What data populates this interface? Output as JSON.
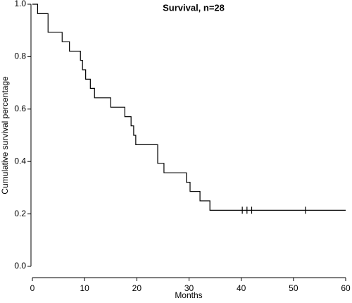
{
  "chart_data": {
    "type": "step",
    "title": "Survival, n=28",
    "x_label": "Months",
    "y_label": "Cumulative survival percentage",
    "x": [
      0,
      1,
      3,
      5.7,
      7.1,
      9.2,
      9.6,
      10.2,
      11.1,
      11.9,
      15,
      17.7,
      18.9,
      19.4,
      19.8,
      24,
      25.2,
      29.5,
      30.2,
      32.1,
      34,
      60
    ],
    "values": [
      1,
      0.964,
      0.893,
      0.857,
      0.821,
      0.786,
      0.75,
      0.714,
      0.679,
      0.643,
      0.607,
      0.571,
      0.536,
      0.5,
      0.464,
      0.393,
      0.357,
      0.321,
      0.286,
      0.25,
      0.214,
      0.214
    ],
    "censored": {
      "x": [
        40.2,
        41.1,
        42,
        52.3
      ],
      "values": [
        0.214,
        0.214,
        0.214,
        0.214
      ]
    },
    "color": "#000000",
    "xlim": [
      0,
      60
    ],
    "xticks": [
      0,
      10,
      20,
      30,
      40,
      50,
      60
    ],
    "ylim": [
      0,
      1
    ],
    "yticks": [
      {
        "value": 0,
        "label": "0.0"
      },
      0.2,
      0.4,
      0.6,
      0.8,
      {
        "value": 1,
        "label": "1.0"
      }
    ]
  }
}
